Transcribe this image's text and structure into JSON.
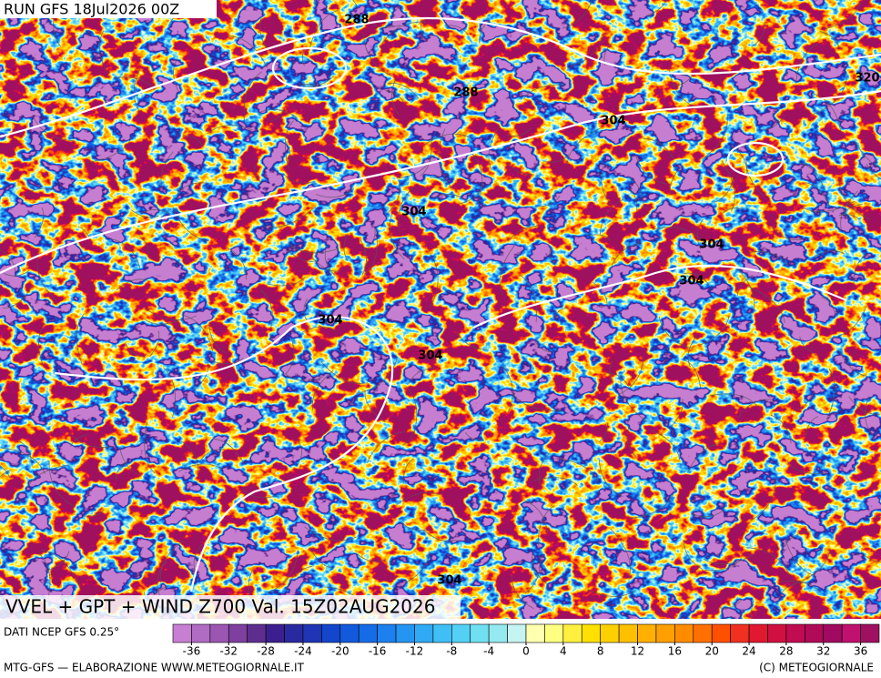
{
  "header": {
    "run": "RUN GFS 18Jul2026 00Z",
    "title": "VVEL + GPT + WIND Z700 Val. 15Z02AUG2026"
  },
  "map": {
    "contour_labels": [
      288,
      288,
      304,
      320,
      304,
      304,
      304,
      304,
      304,
      304
    ]
  },
  "legend": {
    "source": "DATI NCEP GFS 0.25°",
    "colorbar": {
      "lim": [
        -38,
        38
      ],
      "ticks": [
        -36,
        -32,
        -28,
        -24,
        -20,
        -16,
        -12,
        -8,
        -4,
        0,
        4,
        8,
        12,
        16,
        20,
        24,
        28,
        32,
        36
      ],
      "colors": [
        "#c77fd1",
        "#b06bc2",
        "#9a56b1",
        "#7f3f9e",
        "#5e2e8f",
        "#3c1f8f",
        "#2a2aa0",
        "#1f35b5",
        "#1446cc",
        "#1259dc",
        "#166ce6",
        "#1c80ee",
        "#2595f2",
        "#30aaf5",
        "#40bff7",
        "#55d0f5",
        "#70dff2",
        "#95e9f0",
        "#c6f4f2",
        "#ffffb0",
        "#ffff80",
        "#fff040",
        "#ffe000",
        "#ffd000",
        "#ffc000",
        "#ffb000",
        "#ffa000",
        "#ff8c00",
        "#ff7000",
        "#ff5000",
        "#f03020",
        "#e01830",
        "#d01040",
        "#c00c50",
        "#b00a58",
        "#a00a60",
        "#c01070",
        "#a01060"
      ]
    }
  },
  "footer": {
    "left": "MTG-GFS — ELABORAZIONE WWW.METEOGIORNALE.IT",
    "right": "(C) METEOGIORNALE"
  }
}
